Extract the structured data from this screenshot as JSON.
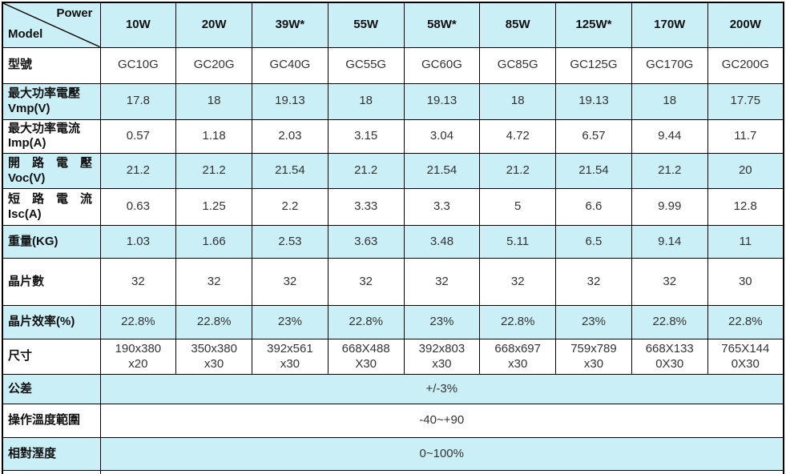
{
  "colors": {
    "row_highlight": "#cbeff7",
    "row_plain": "#ffffff",
    "border": "#000000",
    "value_text": "#333333",
    "label_text": "#111111"
  },
  "table": {
    "corner": {
      "top_right": "Power",
      "bottom_left": "Model"
    },
    "columns": [
      "10W",
      "20W",
      "39W*",
      "55W",
      "58W*",
      "85W",
      "125W*",
      "170W",
      "200W"
    ],
    "rows": [
      {
        "label": "型號",
        "values": [
          "GC10G",
          "GC20G",
          "GC40G",
          "GC55G",
          "GC60G",
          "GC85G",
          "GC125G",
          "GC170G",
          "GC200G"
        ]
      },
      {
        "label": "最大功率電壓\nVmp(V)",
        "values": [
          "17.8",
          "18",
          "19.13",
          "18",
          "19.13",
          "18",
          "19.13",
          "18",
          "17.75"
        ]
      },
      {
        "label": "最大功率電流\nImp(A)",
        "values": [
          "0.57",
          "1.18",
          "2.03",
          "3.15",
          "3.04",
          "4.72",
          "6.57",
          "9.44",
          "11.7"
        ]
      },
      {
        "label": "開　路　電　壓\nVoc(V)",
        "values": [
          "21.2",
          "21.2",
          "21.54",
          "21.2",
          "21.54",
          "21.2",
          "21.54",
          "21.2",
          "20"
        ]
      },
      {
        "label": "短　路　電　流\nIsc(A)",
        "values": [
          "0.63",
          "1.25",
          "2.2",
          "3.33",
          "3.3",
          "5",
          "6.6",
          "9.99",
          "12.8"
        ]
      },
      {
        "label": "重量(KG)",
        "values": [
          "1.03",
          "1.66",
          "2.53",
          "3.63",
          "3.48",
          "5.11",
          "6.5",
          "9.14",
          "11"
        ]
      },
      {
        "label": "晶片數",
        "values": [
          "32",
          "32",
          "32",
          "32",
          "32",
          "32",
          "32",
          "32",
          "30"
        ]
      },
      {
        "label": "晶片效率(%)",
        "values": [
          "22.8%",
          "22.8%",
          "23%",
          "22.8%",
          "23%",
          "22.8%",
          "23%",
          "22.8%",
          "22.8%"
        ]
      },
      {
        "label": "尺寸",
        "values": [
          "190x380\nx20",
          "350x380\nx30",
          "392x561\nx30",
          "668X488\nX30",
          "392x803\nx30",
          "668x697\nx30",
          "759x789\nx30",
          "668X133\n0X30",
          "765X144\n0X30"
        ]
      },
      {
        "label": "公差",
        "span_value": "+/-3%"
      },
      {
        "label": "操作溫度範圍",
        "span_value": "-40~+90"
      },
      {
        "label": "相對溼度",
        "span_value": "0~100%"
      }
    ]
  }
}
